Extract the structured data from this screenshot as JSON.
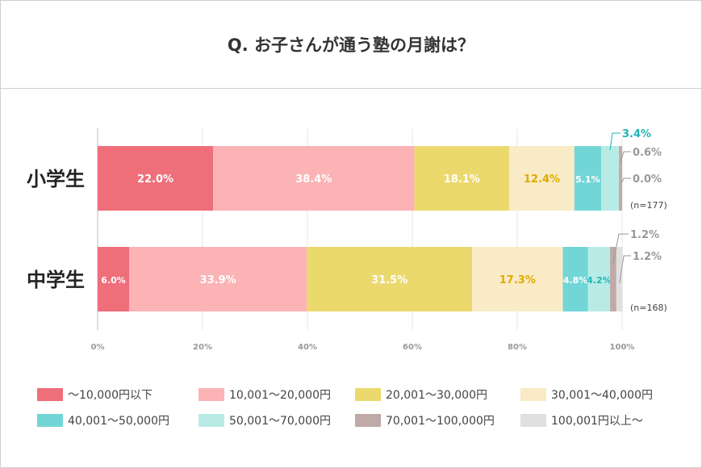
{
  "title": "Q. お子さんが通う塾の月謝は？",
  "chart_data": {
    "type": "bar",
    "orientation": "horizontal",
    "stacked": true,
    "categories": [
      "小学生",
      "中学生"
    ],
    "n_labels": [
      "(n=177)",
      "(n=168)"
    ],
    "series": [
      {
        "name": "～10,000円以下",
        "color": "#ee6e7a",
        "values": [
          22.0,
          6.0
        ]
      },
      {
        "name": "10,001～20,000円",
        "color": "#fbb3b6",
        "values": [
          38.4,
          33.9
        ]
      },
      {
        "name": "20,001～30,000円",
        "color": "#ebd96e",
        "values": [
          18.1,
          31.5
        ]
      },
      {
        "name": "30,001～40,000円",
        "color": "#f9ebc6",
        "values": [
          12.4,
          17.3
        ]
      },
      {
        "name": "40,001～50,000円",
        "color": "#72d6d6",
        "values": [
          5.1,
          4.8
        ]
      },
      {
        "name": "50,001～70,000円",
        "color": "#b8ebe6",
        "values": [
          3.4,
          4.2
        ]
      },
      {
        "name": "70,001～100,000円",
        "color": "#bfaaa8",
        "values": [
          0.6,
          1.2
        ]
      },
      {
        "name": "100,001円以上～",
        "color": "#e0e0e0",
        "values": [
          0.0,
          1.2
        ]
      }
    ],
    "xlim": [
      0,
      100
    ],
    "xticks": [
      "0%",
      "20%",
      "40%",
      "60%",
      "80%",
      "100%"
    ],
    "label_colors": [
      "#ffffff",
      "#ffffff",
      "#ffffff",
      "#e0aa00",
      "#ffffff",
      "#1fb5b5",
      "#999999",
      "#999999"
    ],
    "legend": "bottom"
  }
}
